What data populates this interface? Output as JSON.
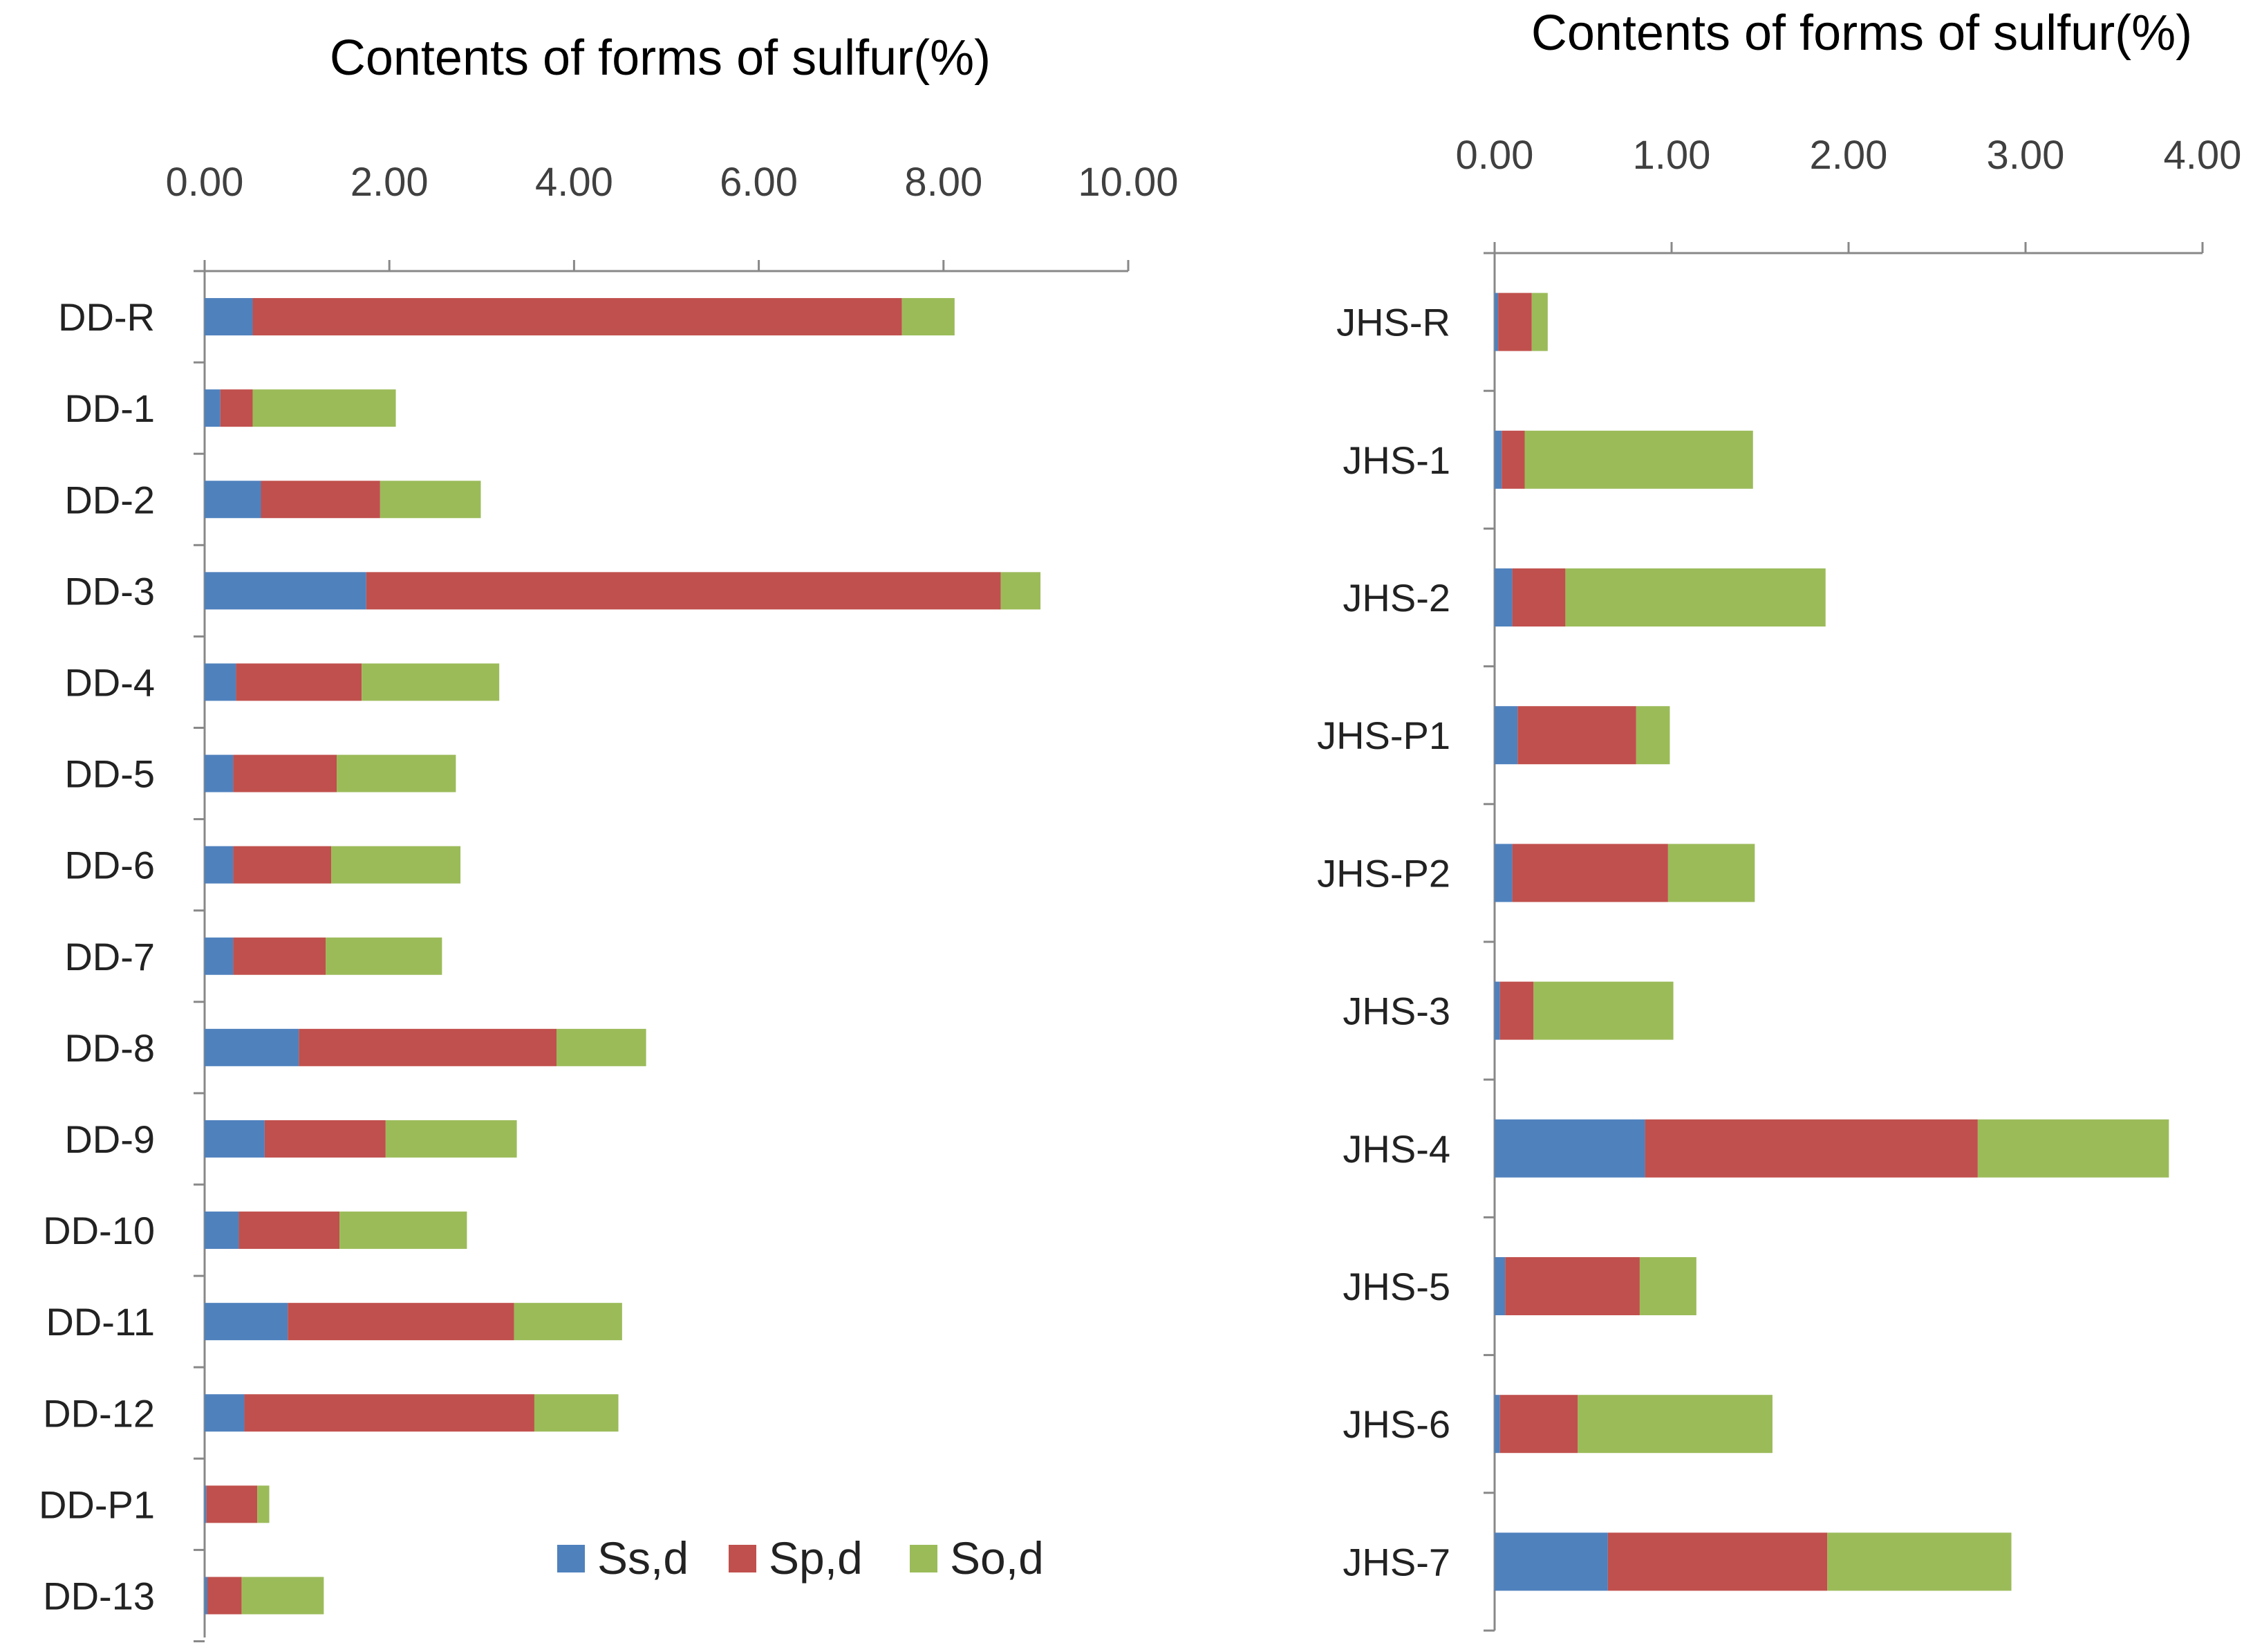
{
  "colors": {
    "Ss,d": "#4F81BD",
    "Sp,d": "#C0504D",
    "So,d": "#9BBB59"
  },
  "legend": [
    "Ss,d",
    "Sp,d",
    "So,d"
  ],
  "chart_data": [
    {
      "type": "bar",
      "orientation": "horizontal",
      "stacked": true,
      "title": "Contents of forms of sulfur(%)",
      "xlim": [
        0,
        10
      ],
      "ticks": [
        "0.00",
        "2.00",
        "4.00",
        "6.00",
        "8.00",
        "10.00"
      ],
      "tick_values": [
        0,
        2,
        4,
        6,
        8,
        10
      ],
      "categories": [
        "DD-R",
        "DD-1",
        "DD-2",
        "DD-3",
        "DD-4",
        "DD-5",
        "DD-6",
        "DD-7",
        "DD-8",
        "DD-9",
        "DD-10",
        "DD-11",
        "DD-12",
        "DD-P1",
        "DD-13"
      ],
      "series": [
        {
          "name": "Ss,d",
          "values": [
            0.52,
            0.17,
            0.61,
            1.75,
            0.34,
            0.31,
            0.31,
            0.31,
            1.02,
            0.65,
            0.37,
            0.9,
            0.43,
            0.02,
            0.03
          ]
        },
        {
          "name": "Sp,d",
          "values": [
            7.03,
            0.35,
            1.29,
            6.87,
            1.36,
            1.12,
            1.06,
            1.0,
            2.79,
            1.31,
            1.09,
            2.45,
            3.14,
            0.55,
            0.37
          ]
        },
        {
          "name": "So,d",
          "values": [
            0.57,
            1.55,
            1.09,
            0.43,
            1.49,
            1.29,
            1.4,
            1.26,
            0.97,
            1.42,
            1.38,
            1.17,
            0.91,
            0.13,
            0.89
          ]
        }
      ],
      "legend_position": "bottom-right"
    },
    {
      "type": "bar",
      "orientation": "horizontal",
      "stacked": true,
      "title": "Contents of forms of sulfur(%)",
      "xlim": [
        0,
        4
      ],
      "ticks": [
        "0.00",
        "1.00",
        "2.00",
        "3.00",
        "4.00"
      ],
      "tick_values": [
        0,
        1,
        2,
        3,
        4
      ],
      "categories": [
        "JHS-R",
        "JHS-1",
        "JHS-2",
        "JHS-P1",
        "JHS-P2",
        "JHS-3",
        "JHS-4",
        "JHS-5",
        "JHS-6",
        "JHS-7"
      ],
      "series": [
        {
          "name": "Ss,d",
          "values": [
            0.02,
            0.04,
            0.1,
            0.13,
            0.1,
            0.03,
            0.85,
            0.06,
            0.03,
            0.64
          ]
        },
        {
          "name": "Sp,d",
          "values": [
            0.19,
            0.13,
            0.3,
            0.67,
            0.88,
            0.19,
            1.88,
            0.76,
            0.44,
            1.24
          ]
        },
        {
          "name": "So,d",
          "values": [
            0.09,
            1.29,
            1.47,
            0.19,
            0.49,
            0.79,
            1.08,
            0.32,
            1.1,
            1.04
          ]
        }
      ]
    }
  ]
}
